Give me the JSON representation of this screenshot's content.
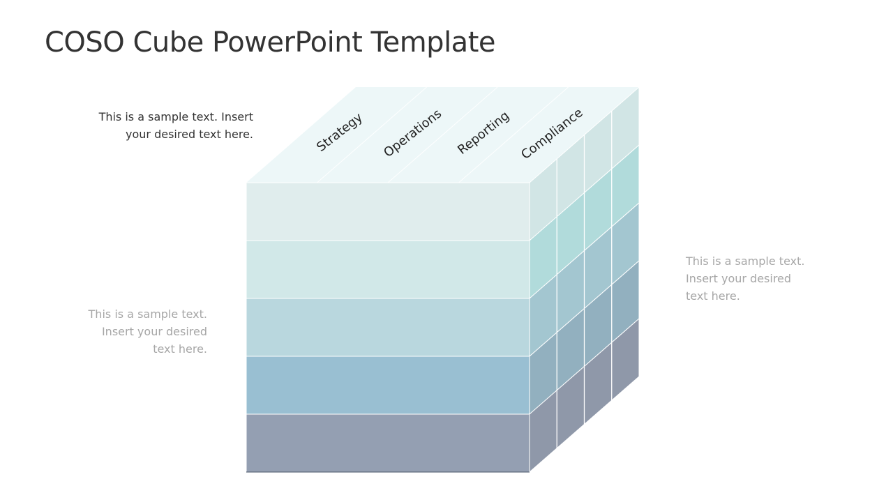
{
  "slide": {
    "title": "COSO Cube PowerPoint Template"
  },
  "notes": {
    "top_left": [
      "This is a sample text. Insert",
      "your desired text here."
    ],
    "bottom_left": [
      "This is a sample text.",
      "Insert your desired",
      "text here."
    ],
    "right": [
      "This is a sample text.",
      "Insert your desired",
      "text here."
    ]
  },
  "cube": {
    "top_labels": [
      "Strategy",
      "Operations",
      "Reporting",
      "Compliance"
    ],
    "layer_colors": [
      "#e0eded",
      "#d1e8e8",
      "#b9d7de",
      "#99bfd2",
      "#949fb2"
    ],
    "side_colors": [
      "#d1e5e5",
      "#b1dbdb",
      "#a3c6d0",
      "#92b0bf",
      "#8f98a9"
    ],
    "top_color": "#edf7f8",
    "label_color": "#222222"
  }
}
